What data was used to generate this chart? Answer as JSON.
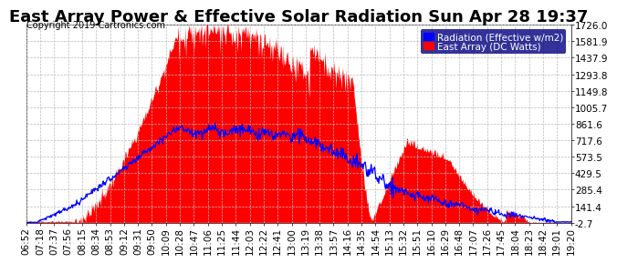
{
  "title": "East Array Power & Effective Solar Radiation Sun Apr 28 19:37",
  "copyright": "Copyright 2019 Cartronics.com",
  "legend_radiation": "Radiation (Effective w/m2)",
  "legend_east": "East Array (DC Watts)",
  "yticks": [
    -2.7,
    141.4,
    285.4,
    429.5,
    573.5,
    717.6,
    861.6,
    1005.7,
    1149.8,
    1293.8,
    1437.9,
    1581.9,
    1726.0
  ],
  "ymin": -2.7,
  "ymax": 1726.0,
  "bg_color": "#ffffff",
  "plot_bg_color": "#ffffff",
  "grid_color": "#bbbbbb",
  "red_fill_color": "#ff0000",
  "blue_line_color": "#0000ff",
  "title_fontsize": 13,
  "tick_fontsize": 7.5,
  "copyright_fontsize": 7,
  "xtick_labels": [
    "06:52",
    "07:18",
    "07:37",
    "07:56",
    "08:15",
    "08:34",
    "08:53",
    "09:12",
    "09:31",
    "09:50",
    "10:09",
    "10:28",
    "10:47",
    "11:06",
    "11:25",
    "11:44",
    "12:03",
    "12:22",
    "12:41",
    "13:00",
    "13:19",
    "13:38",
    "13:57",
    "14:16",
    "14:35",
    "14:54",
    "15:13",
    "15:32",
    "15:51",
    "16:10",
    "16:29",
    "16:48",
    "17:07",
    "17:26",
    "17:45",
    "18:04",
    "18:23",
    "18:42",
    "19:01",
    "19:20"
  ]
}
